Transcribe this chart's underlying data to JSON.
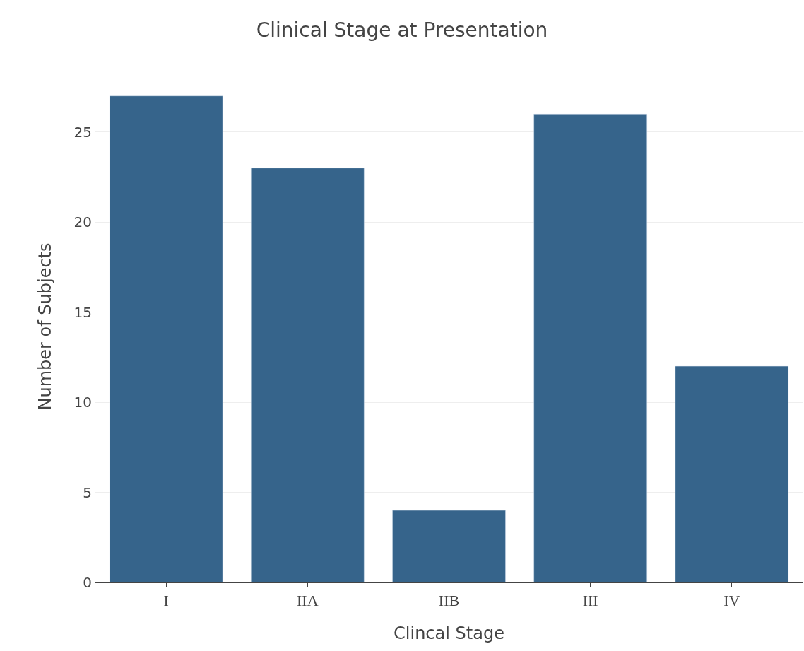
{
  "chart_data": {
    "type": "bar",
    "title": "Clinical Stage at Presentation",
    "xlabel": "Clincal Stage",
    "ylabel": "Number of Subjects",
    "categories": [
      "I",
      "IIA",
      "IIB",
      "III",
      "IV"
    ],
    "values": [
      27,
      23,
      4,
      26,
      12
    ],
    "color": "#36648b",
    "ylim": [
      0,
      28.4
    ],
    "yticks": [
      0,
      5,
      10,
      15,
      20,
      25
    ],
    "grid": "y",
    "legend": false
  }
}
